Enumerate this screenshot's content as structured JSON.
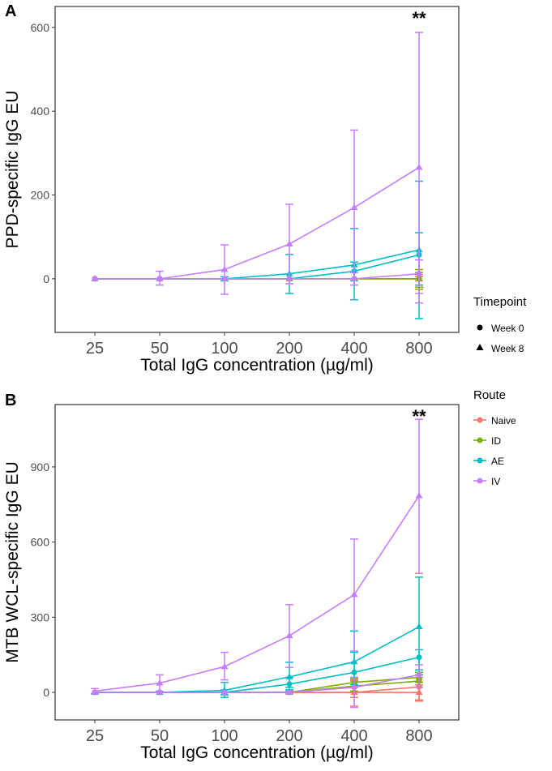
{
  "chart_data": [
    {
      "type": "line",
      "panel_label": "A",
      "ylabel": "PPD-specific IgG EU",
      "xlabel": "Total IgG concentration (µg/ml)",
      "x_scale": "log2",
      "categories": [
        "25",
        "50",
        "100",
        "200",
        "400",
        "800"
      ],
      "ylim": [
        -128,
        650
      ],
      "yticks": [
        0,
        200,
        400,
        600
      ],
      "grid": false,
      "annotation": {
        "text": "**",
        "x": "800"
      },
      "series": [
        {
          "route": "Naive",
          "timepoint": "Week 0",
          "values": [
            0,
            0,
            0,
            0,
            0,
            0
          ],
          "lo": [
            0,
            0,
            0,
            0,
            0,
            -5
          ],
          "hi": [
            0,
            0,
            0,
            0,
            0,
            5
          ]
        },
        {
          "route": "Naive",
          "timepoint": "Week 8",
          "values": [
            0,
            0,
            0,
            0,
            0,
            0
          ],
          "lo": [
            0,
            0,
            0,
            0,
            0,
            -15
          ],
          "hi": [
            0,
            0,
            0,
            0,
            0,
            10
          ]
        },
        {
          "route": "ID",
          "timepoint": "Week 0",
          "values": [
            0,
            0,
            0,
            0,
            0,
            0
          ],
          "lo": [
            0,
            0,
            0,
            0,
            0,
            -20
          ],
          "hi": [
            0,
            0,
            0,
            0,
            0,
            15
          ]
        },
        {
          "route": "ID",
          "timepoint": "Week 8",
          "values": [
            0,
            0,
            0,
            0,
            0,
            0
          ],
          "lo": [
            0,
            0,
            0,
            0,
            0,
            -25
          ],
          "hi": [
            0,
            0,
            0,
            0,
            0,
            22
          ]
        },
        {
          "route": "AE",
          "timepoint": "Week 0",
          "values": [
            0,
            0,
            0,
            0,
            18,
            57
          ],
          "lo": [
            0,
            0,
            0,
            0,
            -5,
            -15
          ],
          "hi": [
            0,
            0,
            0,
            0,
            40,
            110
          ]
        },
        {
          "route": "AE",
          "timepoint": "Week 8",
          "values": [
            0,
            0,
            0,
            12,
            33,
            69
          ],
          "lo": [
            0,
            0,
            -5,
            -35,
            -50,
            -95
          ],
          "hi": [
            0,
            0,
            5,
            58,
            120,
            233
          ]
        },
        {
          "route": "IV",
          "timepoint": "Week 0",
          "values": [
            0,
            0,
            0,
            0,
            0,
            12
          ],
          "lo": [
            0,
            0,
            0,
            0,
            -15,
            -35
          ],
          "hi": [
            0,
            0,
            0,
            0,
            15,
            45
          ]
        },
        {
          "route": "IV",
          "timepoint": "Week 8",
          "values": [
            0,
            0,
            22,
            83,
            170,
            266
          ],
          "lo": [
            0,
            -15,
            -37,
            -12,
            -15,
            -58
          ],
          "hi": [
            0,
            18,
            81,
            178,
            355,
            588
          ]
        }
      ]
    },
    {
      "type": "line",
      "panel_label": "B",
      "ylabel": "MTB WCL-specific IgG EU",
      "xlabel": "Total IgG concentration (µg/ml)",
      "x_scale": "log2",
      "categories": [
        "25",
        "50",
        "100",
        "200",
        "400",
        "800"
      ],
      "ylim": [
        -110,
        1149
      ],
      "yticks": [
        0,
        300,
        600,
        900
      ],
      "grid": false,
      "annotation": {
        "text": "**",
        "x": "800"
      },
      "series": [
        {
          "route": "Naive",
          "timepoint": "Week 0",
          "values": [
            0,
            0,
            0,
            0,
            0,
            22
          ],
          "lo": [
            0,
            0,
            0,
            -5,
            -55,
            -35
          ],
          "hi": [
            0,
            0,
            0,
            5,
            50,
            60
          ]
        },
        {
          "route": "Naive",
          "timepoint": "Week 8",
          "values": [
            0,
            0,
            0,
            0,
            0,
            0
          ],
          "lo": [
            0,
            0,
            0,
            0,
            -20,
            -30
          ],
          "hi": [
            0,
            0,
            0,
            0,
            20,
            30
          ]
        },
        {
          "route": "ID",
          "timepoint": "Week 0",
          "values": [
            0,
            0,
            0,
            0,
            25,
            45
          ],
          "lo": [
            0,
            0,
            0,
            0,
            5,
            20
          ],
          "hi": [
            0,
            0,
            0,
            0,
            45,
            70
          ]
        },
        {
          "route": "ID",
          "timepoint": "Week 8",
          "values": [
            0,
            0,
            0,
            0,
            40,
            60
          ],
          "lo": [
            0,
            0,
            0,
            0,
            20,
            40
          ],
          "hi": [
            0,
            0,
            0,
            0,
            55,
            80
          ]
        },
        {
          "route": "AE",
          "timepoint": "Week 0",
          "values": [
            0,
            0,
            0,
            33,
            80,
            140
          ],
          "lo": [
            0,
            0,
            -10,
            10,
            30,
            90
          ],
          "hi": [
            0,
            0,
            10,
            60,
            160,
            170
          ]
        },
        {
          "route": "AE",
          "timepoint": "Week 8",
          "values": [
            0,
            0,
            8,
            62,
            122,
            262
          ],
          "lo": [
            0,
            0,
            -20,
            20,
            60,
            70
          ],
          "hi": [
            0,
            0,
            40,
            120,
            245,
            460
          ]
        },
        {
          "route": "IV",
          "timepoint": "Week 0",
          "values": [
            0,
            0,
            0,
            0,
            20,
            70
          ],
          "lo": [
            0,
            0,
            0,
            -5,
            -60,
            20
          ],
          "hi": [
            0,
            0,
            0,
            5,
            60,
            110
          ]
        },
        {
          "route": "IV",
          "timepoint": "Week 8",
          "values": [
            5,
            37,
            103,
            226,
            390,
            785
          ],
          "lo": [
            -5,
            5,
            50,
            100,
            165,
            475
          ],
          "hi": [
            15,
            70,
            160,
            350,
            612,
            1090
          ]
        }
      ]
    }
  ],
  "legend": {
    "timepoint_title": "Timepoint",
    "timepoints": [
      {
        "label": "Week 0",
        "shape": "circle"
      },
      {
        "label": "Week 8",
        "shape": "triangle"
      }
    ],
    "route_title": "Route",
    "routes": [
      {
        "label": "Naive",
        "color": "#F8766D"
      },
      {
        "label": "ID",
        "color": "#7CAE00"
      },
      {
        "label": "AE",
        "color": "#00BFC4"
      },
      {
        "label": "IV",
        "color": "#C77CFF"
      }
    ]
  }
}
